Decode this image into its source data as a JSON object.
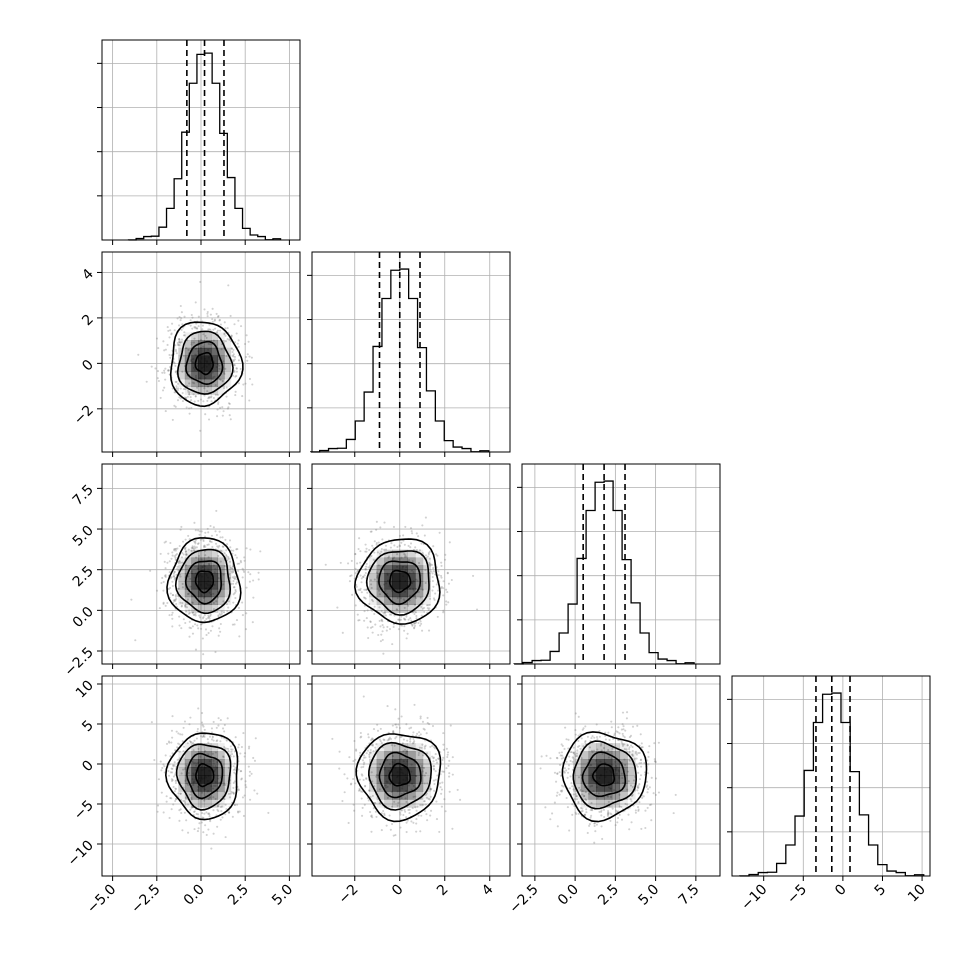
{
  "chart_data": {
    "type": "corner",
    "grid": true,
    "parameters": [
      {
        "range": [
          -5.6,
          5.6
        ],
        "ticks": [
          -5.0,
          -2.5,
          0.0,
          2.5,
          5.0
        ],
        "tick_labels": [
          "−5.0",
          "−2.5",
          "0.0",
          "2.5",
          "5.0"
        ],
        "mean": 0.2,
        "sd": 1.0,
        "quantiles": [
          -0.8,
          0.2,
          1.3
        ],
        "hist_peak": 0.95
      },
      {
        "range": [
          -3.9,
          4.9
        ],
        "ticks": [
          -2,
          0,
          2,
          4
        ],
        "tick_labels": [
          "−2",
          "0",
          "2",
          "4"
        ],
        "mean": 0.0,
        "sd": 0.92,
        "quantiles": [
          -0.9,
          0.0,
          0.9
        ],
        "hist_peak": 0.93
      },
      {
        "range": [
          -3.3,
          9.0
        ],
        "ticks": [
          -2.5,
          0.0,
          2.5,
          5.0,
          7.5
        ],
        "tick_labels": [
          "−2.5",
          "0.0",
          "2.5",
          "5.0",
          "7.5"
        ],
        "mean": 1.8,
        "sd": 1.3,
        "quantiles": [
          0.5,
          1.8,
          3.1
        ],
        "hist_peak": 0.93
      },
      {
        "range": [
          -14.0,
          11.0
        ],
        "ticks": [
          -10,
          -5,
          0,
          5,
          10
        ],
        "tick_labels": [
          "−10",
          "−5",
          "0",
          "5",
          "10"
        ],
        "mean": -1.4,
        "sd": 2.7,
        "quantiles": [
          -3.4,
          -1.4,
          0.9
        ],
        "hist_peak": 0.93
      }
    ]
  }
}
